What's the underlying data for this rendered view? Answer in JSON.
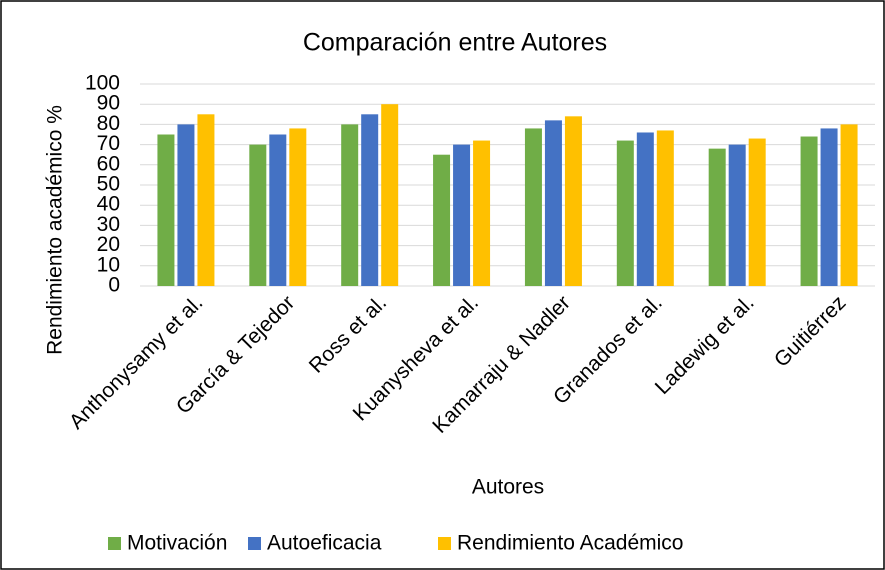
{
  "chart_data": {
    "type": "bar",
    "title": "Comparación entre Autores",
    "x_label": "Autores",
    "y_label": "Rendimiento académico %",
    "categories": [
      "Anthonysamy et al.",
      "García & Tejedor",
      "Ross et al.",
      "Kuanysheva et al.",
      "Kamarraju & Nadler",
      "Granados et al.",
      "Ladewig et al.",
      "Guitiérrez"
    ],
    "series": [
      {
        "name": "Motivación",
        "color": "#70ad47",
        "values": [
          75,
          70,
          80,
          65,
          78,
          72,
          68,
          74
        ]
      },
      {
        "name": "Autoeficacia",
        "color": "#4472c4",
        "values": [
          80,
          75,
          85,
          70,
          82,
          76,
          70,
          78
        ]
      },
      {
        "name": "Rendimiento Académico",
        "color": "#ffc000",
        "values": [
          85,
          78,
          90,
          72,
          84,
          77,
          73,
          80
        ]
      }
    ],
    "ylim": [
      0,
      100
    ],
    "yticks": [
      0,
      10,
      20,
      30,
      40,
      50,
      60,
      70,
      80,
      90,
      100
    ],
    "grid": true,
    "legend": "bottom"
  }
}
